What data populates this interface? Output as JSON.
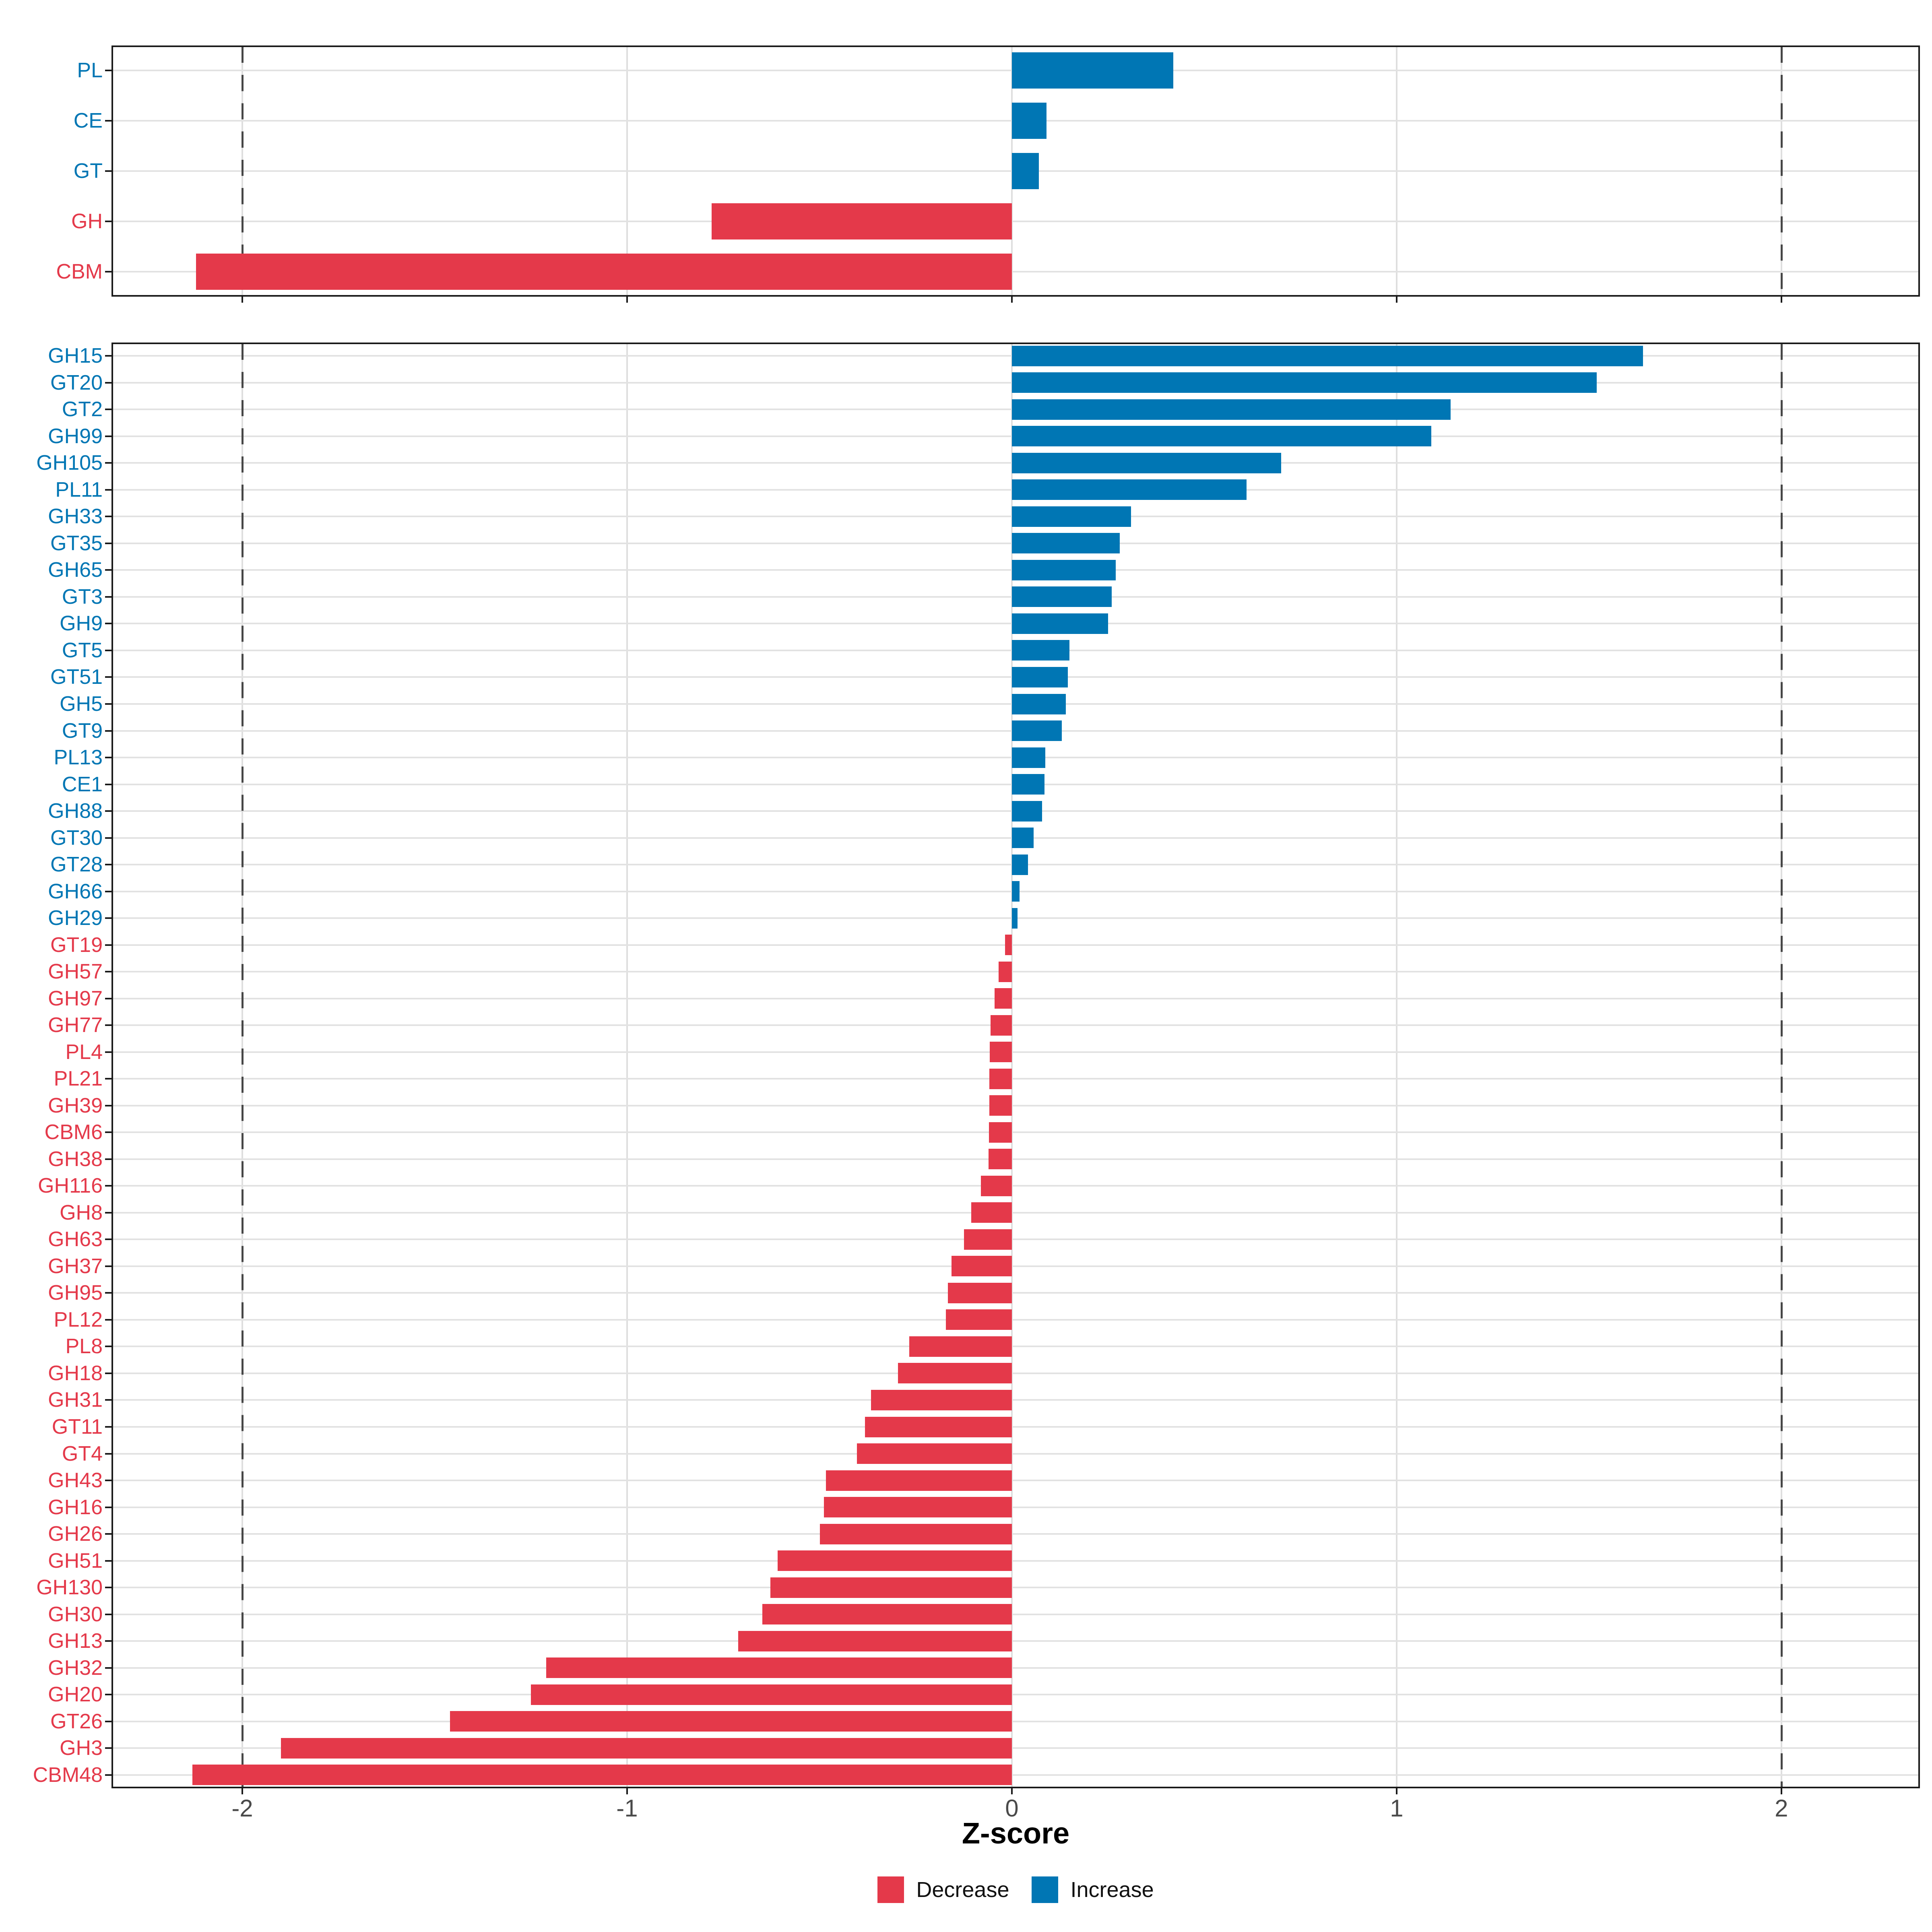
{
  "figure": {
    "x_axis": {
      "label": "Z-score",
      "ticks": [
        -2,
        -1,
        0,
        1,
        2
      ],
      "xlim": [
        -2.34,
        2.36
      ],
      "reference_lines": [
        -2,
        2
      ]
    },
    "legend": {
      "items": [
        {
          "label": "Decrease",
          "key": "decrease",
          "color": "#E4394A"
        },
        {
          "label": "Increase",
          "key": "increase",
          "color": "#0076B4"
        }
      ]
    },
    "colors": {
      "increase": "#0076B4",
      "decrease": "#E4394A",
      "grid": "#E2E2E2",
      "reference": "#474747",
      "axis_text": "#4A4A4A",
      "border": "#1A1A1A"
    }
  },
  "chart_data": [
    {
      "id": "enzyme-classes",
      "type": "bar",
      "orientation": "horizontal",
      "xlabel": "Z-score",
      "xlim": [
        -2.34,
        2.36
      ],
      "categories": [
        "PL",
        "CE",
        "GT",
        "GH",
        "CBM"
      ],
      "values": [
        0.42,
        0.09,
        0.07,
        -0.78,
        -2.12
      ]
    },
    {
      "id": "enzyme-families",
      "type": "bar",
      "orientation": "horizontal",
      "xlabel": "Z-score",
      "xlim": [
        -2.34,
        2.36
      ],
      "categories": [
        "GH15",
        "GT20",
        "GT2",
        "GH99",
        "GH105",
        "PL11",
        "GH33",
        "GT35",
        "GH65",
        "GT3",
        "GH9",
        "GT5",
        "GT51",
        "GH5",
        "GT9",
        "PL13",
        "CE1",
        "GH88",
        "GT30",
        "GT28",
        "GH66",
        "GH29",
        "GT19",
        "GH57",
        "GH97",
        "GH77",
        "PL4",
        "PL21",
        "GH39",
        "CBM6",
        "GH38",
        "GH116",
        "GH8",
        "GH63",
        "GH37",
        "GH95",
        "PL12",
        "PL8",
        "GH18",
        "GH31",
        "GT11",
        "GT4",
        "GH43",
        "GH16",
        "GH26",
        "GH51",
        "GH130",
        "GH30",
        "GH13",
        "GH32",
        "GH20",
        "GT26",
        "GH3",
        "CBM48"
      ],
      "values": [
        1.64,
        1.52,
        1.14,
        1.09,
        0.7,
        0.61,
        0.31,
        0.28,
        0.27,
        0.26,
        0.25,
        0.15,
        0.145,
        0.14,
        0.13,
        0.087,
        0.085,
        0.078,
        0.057,
        0.042,
        0.02,
        0.015,
        -0.018,
        -0.034,
        -0.045,
        -0.055,
        -0.057,
        -0.058,
        -0.059,
        -0.06,
        -0.061,
        -0.081,
        -0.106,
        -0.124,
        -0.157,
        -0.166,
        -0.172,
        -0.267,
        -0.296,
        -0.366,
        -0.382,
        -0.403,
        -0.483,
        -0.488,
        -0.499,
        -0.609,
        -0.628,
        -0.648,
        -0.711,
        -1.21,
        -1.25,
        -1.46,
        -1.9,
        -2.13
      ]
    }
  ]
}
